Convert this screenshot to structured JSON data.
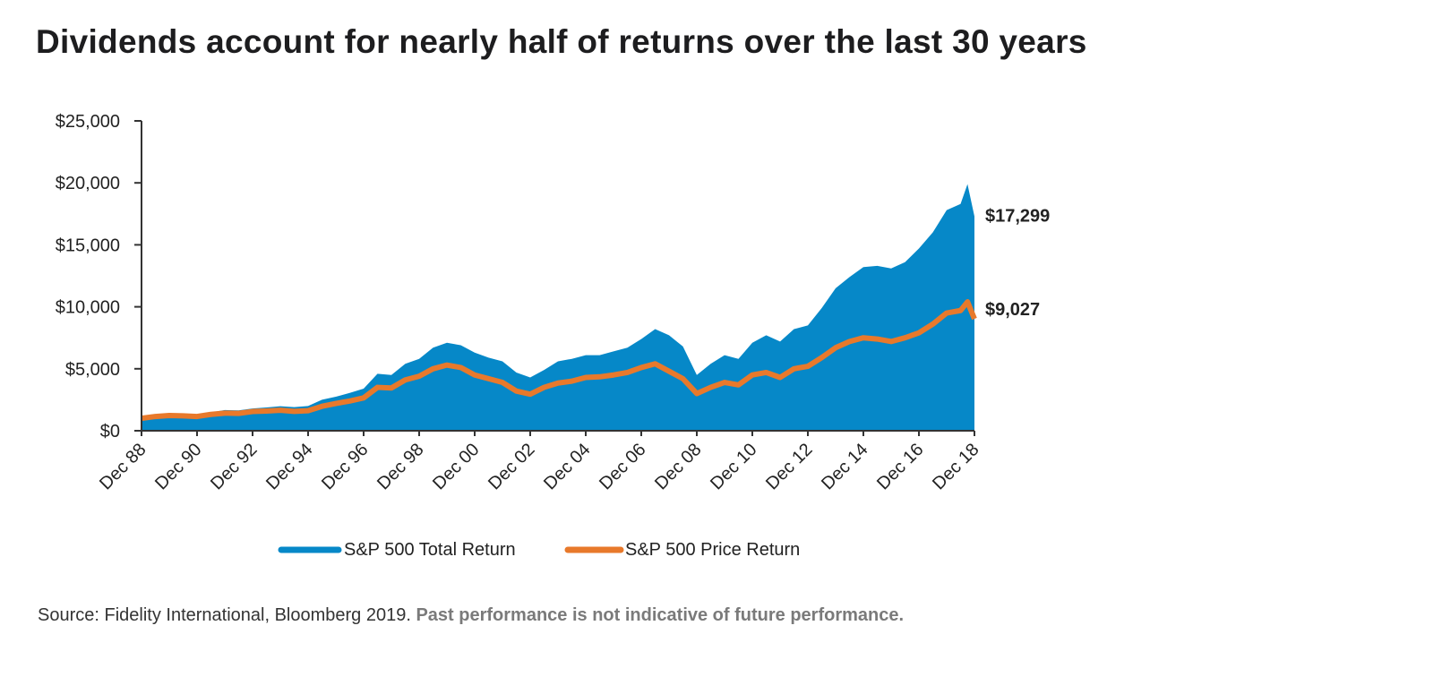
{
  "title": "Dividends account for nearly half of returns over the last 30 years",
  "source": {
    "text": "Source: Fidelity International, Bloomberg 2019.",
    "disclaimer": "Past performance is not indicative of future performance."
  },
  "colors": {
    "total_return": "#0688c8",
    "price_return": "#e8792b",
    "text": "#222222"
  },
  "chart_data": {
    "type": "area",
    "title": "Dividends account for nearly half of returns over the last 30 years",
    "xlabel": "",
    "ylabel": "",
    "ylim": [
      0,
      25000
    ],
    "yticks": [
      0,
      5000,
      10000,
      15000,
      20000,
      25000
    ],
    "ytick_labels": [
      "$0",
      "$5,000",
      "$10,000",
      "$15,000",
      "$20,000",
      "$25,000"
    ],
    "xtick_labels": [
      "Dec 88",
      "Dec 90",
      "Dec 92",
      "Dec 94",
      "Dec 96",
      "Dec 98",
      "Dec 00",
      "Dec 02",
      "Dec 04",
      "Dec 06",
      "Dec 08",
      "Dec 10",
      "Dec 12",
      "Dec 14",
      "Dec 16",
      "Dec 18"
    ],
    "grid": false,
    "legend_position": "bottom",
    "x": [
      "1988-12",
      "1989-06",
      "1989-12",
      "1990-06",
      "1990-12",
      "1991-06",
      "1991-12",
      "1992-06",
      "1992-12",
      "1993-06",
      "1993-12",
      "1994-06",
      "1994-12",
      "1995-06",
      "1995-12",
      "1996-06",
      "1996-12",
      "1997-06",
      "1997-12",
      "1998-06",
      "1998-12",
      "1999-06",
      "1999-12",
      "2000-06",
      "2000-12",
      "2001-06",
      "2001-12",
      "2002-06",
      "2002-12",
      "2003-06",
      "2003-12",
      "2004-06",
      "2004-12",
      "2005-06",
      "2005-12",
      "2006-06",
      "2006-12",
      "2007-06",
      "2007-12",
      "2008-06",
      "2008-12",
      "2009-06",
      "2009-12",
      "2010-06",
      "2010-12",
      "2011-06",
      "2011-12",
      "2012-06",
      "2012-12",
      "2013-06",
      "2013-12",
      "2014-06",
      "2014-12",
      "2015-06",
      "2015-12",
      "2016-06",
      "2016-12",
      "2017-06",
      "2017-12",
      "2018-06",
      "2018-09",
      "2018-12"
    ],
    "series": [
      {
        "name": "S&P 500 Total Return",
        "type": "area",
        "end_label": "$17,299",
        "values": [
          1000,
          1200,
          1320,
          1330,
          1280,
          1480,
          1670,
          1640,
          1800,
          1880,
          1980,
          1910,
          2000,
          2500,
          2750,
          3050,
          3400,
          4600,
          4500,
          5400,
          5800,
          6700,
          7100,
          6900,
          6300,
          5900,
          5600,
          4700,
          4300,
          4900,
          5600,
          5800,
          6100,
          6100,
          6400,
          6700,
          7400,
          8200,
          7700,
          6800,
          4500,
          5400,
          6100,
          5800,
          7100,
          7700,
          7200,
          8200,
          8500,
          9900,
          11500,
          12400,
          13200,
          13300,
          13100,
          13600,
          14700,
          16000,
          17800,
          18300,
          19900,
          17299
        ]
      },
      {
        "name": "S&P 500 Price Return",
        "type": "line",
        "end_label": "$9,027",
        "values": [
          1000,
          1150,
          1230,
          1200,
          1150,
          1320,
          1420,
          1400,
          1550,
          1590,
          1650,
          1560,
          1620,
          1970,
          2200,
          2400,
          2650,
          3500,
          3450,
          4100,
          4400,
          5000,
          5300,
          5100,
          4500,
          4200,
          3900,
          3200,
          2950,
          3500,
          3850,
          4000,
          4300,
          4350,
          4500,
          4700,
          5100,
          5400,
          4800,
          4200,
          3000,
          3500,
          3900,
          3700,
          4500,
          4700,
          4300,
          5000,
          5200,
          5900,
          6700,
          7200,
          7500,
          7400,
          7200,
          7500,
          7900,
          8600,
          9500,
          9700,
          10400,
          9027
        ]
      }
    ]
  }
}
